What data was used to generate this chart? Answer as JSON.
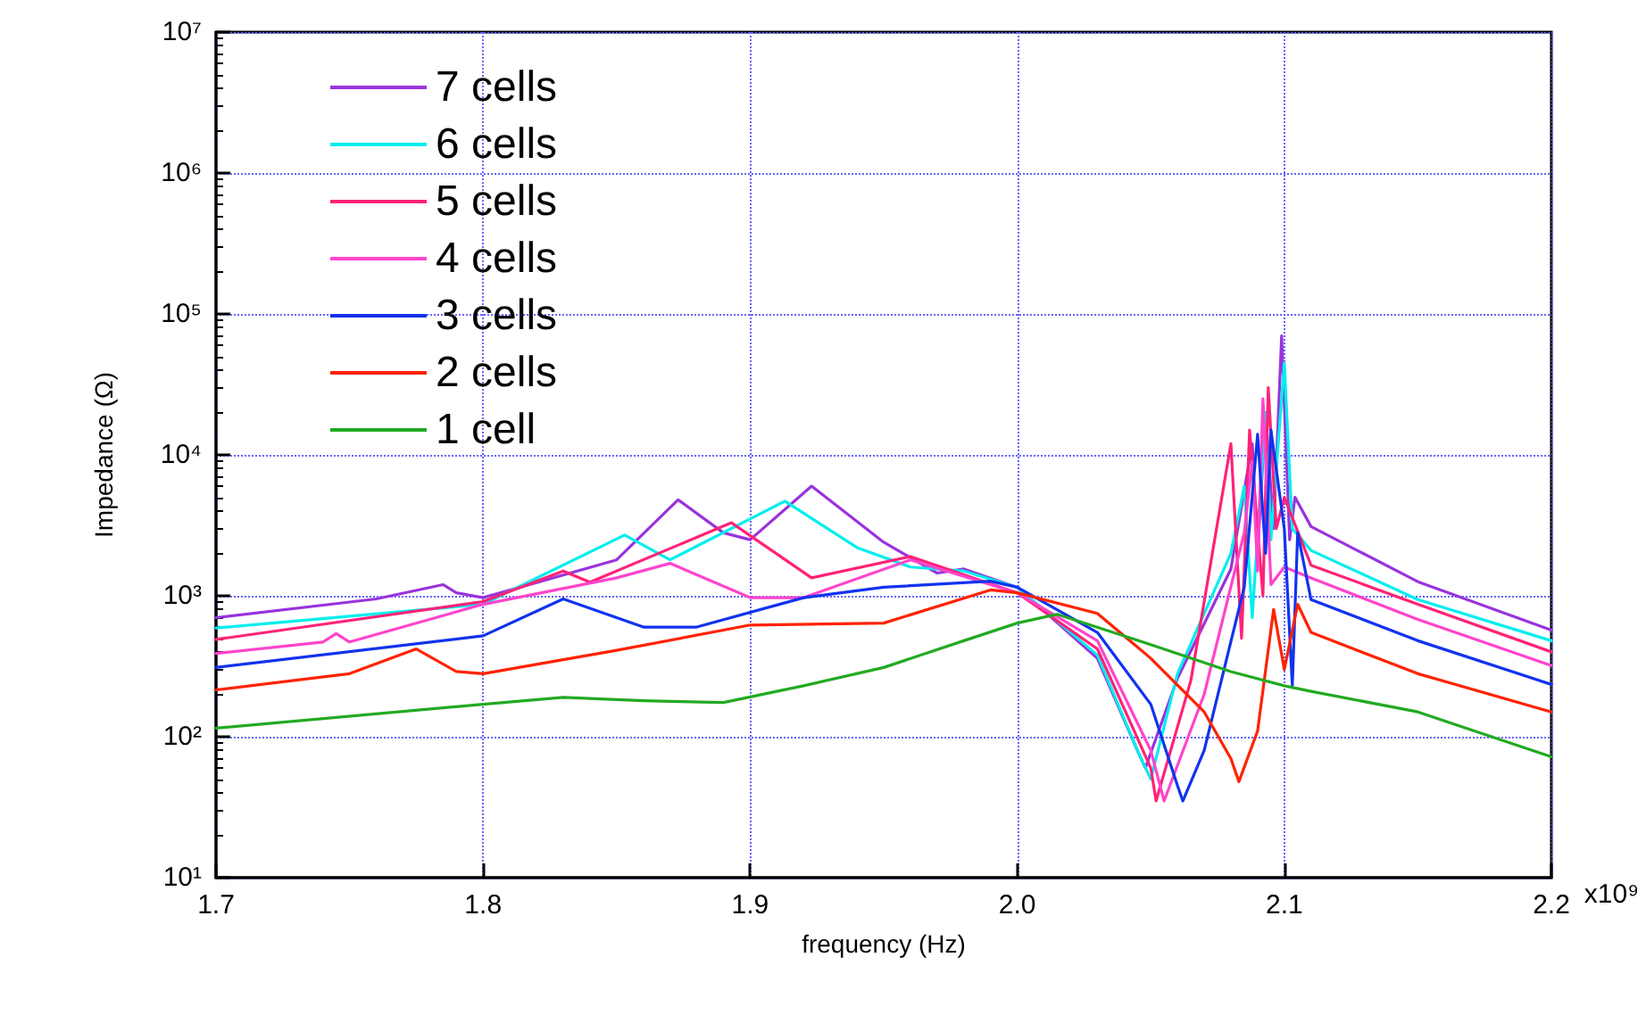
{
  "chart_data": {
    "type": "line",
    "xlabel": "frequency (Hz)",
    "ylabel": "Impedance (Ω)",
    "log": "y",
    "grid": true,
    "legend": "top left",
    "marker": "none",
    "line_style": "solid",
    "xlim": [
      1.7,
      2.2
    ],
    "xticks": [
      1.7,
      1.8,
      1.9,
      {
        "value": 2.0,
        "label": "2.0"
      },
      2.1,
      2.2
    ],
    "annotations": [
      "x10⁹"
    ],
    "ylim": [
      10,
      10000000
    ],
    "yticks": [
      {
        "value": 10,
        "label": "10¹"
      },
      {
        "value": 100,
        "label": "10²"
      },
      {
        "value": 1000,
        "label": "10³"
      },
      {
        "value": 10000,
        "label": "10⁴"
      },
      {
        "value": 100000,
        "label": "10⁵"
      },
      {
        "value": 1000000,
        "label": "10⁶"
      },
      {
        "value": 10000000,
        "label": "10⁷"
      }
    ],
    "series": [
      {
        "name": "7 cells",
        "color": "#9933dd",
        "x": [
          1.7,
          1.76,
          1.785,
          1.79,
          1.8,
          1.85,
          1.873,
          1.89,
          1.9,
          1.923,
          1.95,
          1.97,
          1.98,
          2.0,
          2.03,
          2.045,
          2.048,
          2.06,
          2.08,
          2.088,
          2.09,
          2.093,
          2.096,
          2.099,
          2.102,
          2.104,
          2.11,
          2.15,
          2.2
        ],
        "values": [
          700,
          950,
          1200,
          1050,
          970,
          1800,
          4800,
          2800,
          2500,
          6000,
          2400,
          1450,
          1550,
          1150,
          360,
          80,
          60,
          260,
          1550,
          12000,
          2000,
          20000,
          3000,
          70000,
          2500,
          5000,
          3100,
          1260,
          570
        ]
      },
      {
        "name": "6 cells",
        "color": "#00eeee",
        "x": [
          1.7,
          1.8,
          1.853,
          1.87,
          1.913,
          1.94,
          1.96,
          1.98,
          2.0,
          2.03,
          2.045,
          2.05,
          2.06,
          2.08,
          2.085,
          2.088,
          2.093,
          2.095,
          2.1,
          2.103,
          2.11,
          2.15,
          2.2
        ],
        "values": [
          590,
          870,
          2700,
          1800,
          4700,
          2200,
          1600,
          1500,
          1150,
          380,
          80,
          50,
          280,
          2000,
          6000,
          700,
          20000,
          2500,
          45000,
          3000,
          2100,
          940,
          480
        ]
      },
      {
        "name": "5 cells",
        "color": "#ff2277",
        "x": [
          1.7,
          1.8,
          1.83,
          1.84,
          1.893,
          1.923,
          1.96,
          2.0,
          2.03,
          2.05,
          2.052,
          2.065,
          2.08,
          2.084,
          2.087,
          2.092,
          2.094,
          2.097,
          2.1,
          2.11,
          2.15,
          2.2
        ],
        "values": [
          490,
          910,
          1500,
          1250,
          3300,
          1340,
          1900,
          1050,
          420,
          60,
          35,
          250,
          12000,
          500,
          15000,
          1000,
          30000,
          3000,
          5000,
          1650,
          870,
          400
        ]
      },
      {
        "name": "4 cells",
        "color": "#ff44cc",
        "x": [
          1.7,
          1.74,
          1.745,
          1.75,
          1.8,
          1.85,
          1.87,
          1.9,
          1.92,
          1.96,
          2.0,
          2.03,
          2.05,
          2.055,
          2.07,
          2.085,
          2.088,
          2.09,
          2.092,
          2.095,
          2.1,
          2.11,
          2.15,
          2.2
        ],
        "values": [
          390,
          470,
          540,
          470,
          870,
          1340,
          1700,
          970,
          970,
          1800,
          1050,
          480,
          80,
          35,
          200,
          2800,
          9000,
          1500,
          25000,
          1200,
          1600,
          1340,
          680,
          320
        ]
      },
      {
        "name": "3 cells",
        "color": "#1133ee",
        "x": [
          1.7,
          1.8,
          1.83,
          1.86,
          1.88,
          1.92,
          1.95,
          1.99,
          2.0,
          2.03,
          2.05,
          2.06,
          2.062,
          2.07,
          2.085,
          2.09,
          2.093,
          2.095,
          2.1,
          2.103,
          2.105,
          2.11,
          2.15,
          2.2
        ],
        "values": [
          310,
          520,
          950,
          600,
          600,
          970,
          1150,
          1270,
          1150,
          550,
          170,
          45,
          35,
          80,
          1150,
          14000,
          2000,
          15000,
          3000,
          230,
          2800,
          940,
          480,
          235
        ]
      },
      {
        "name": "2 cells",
        "color": "#ff2200",
        "x": [
          1.7,
          1.75,
          1.775,
          1.79,
          1.8,
          1.85,
          1.9,
          1.95,
          1.99,
          2.0,
          2.03,
          2.05,
          2.07,
          2.08,
          2.083,
          2.09,
          2.096,
          2.1,
          2.105,
          2.11,
          2.15,
          2.2
        ],
        "values": [
          215,
          280,
          420,
          290,
          280,
          410,
          620,
          640,
          1100,
          1050,
          750,
          360,
          150,
          70,
          48,
          110,
          800,
          300,
          870,
          550,
          280,
          150
        ]
      },
      {
        "name": "1 cell",
        "color": "#22aa22",
        "x": [
          1.7,
          1.8,
          1.83,
          1.86,
          1.89,
          1.92,
          1.95,
          1.98,
          2.0,
          2.015,
          2.05,
          2.08,
          2.1,
          2.11,
          2.15,
          2.2
        ],
        "values": [
          115,
          170,
          190,
          180,
          175,
          230,
          310,
          480,
          640,
          740,
          450,
          290,
          230,
          210,
          150,
          72
        ]
      }
    ]
  }
}
